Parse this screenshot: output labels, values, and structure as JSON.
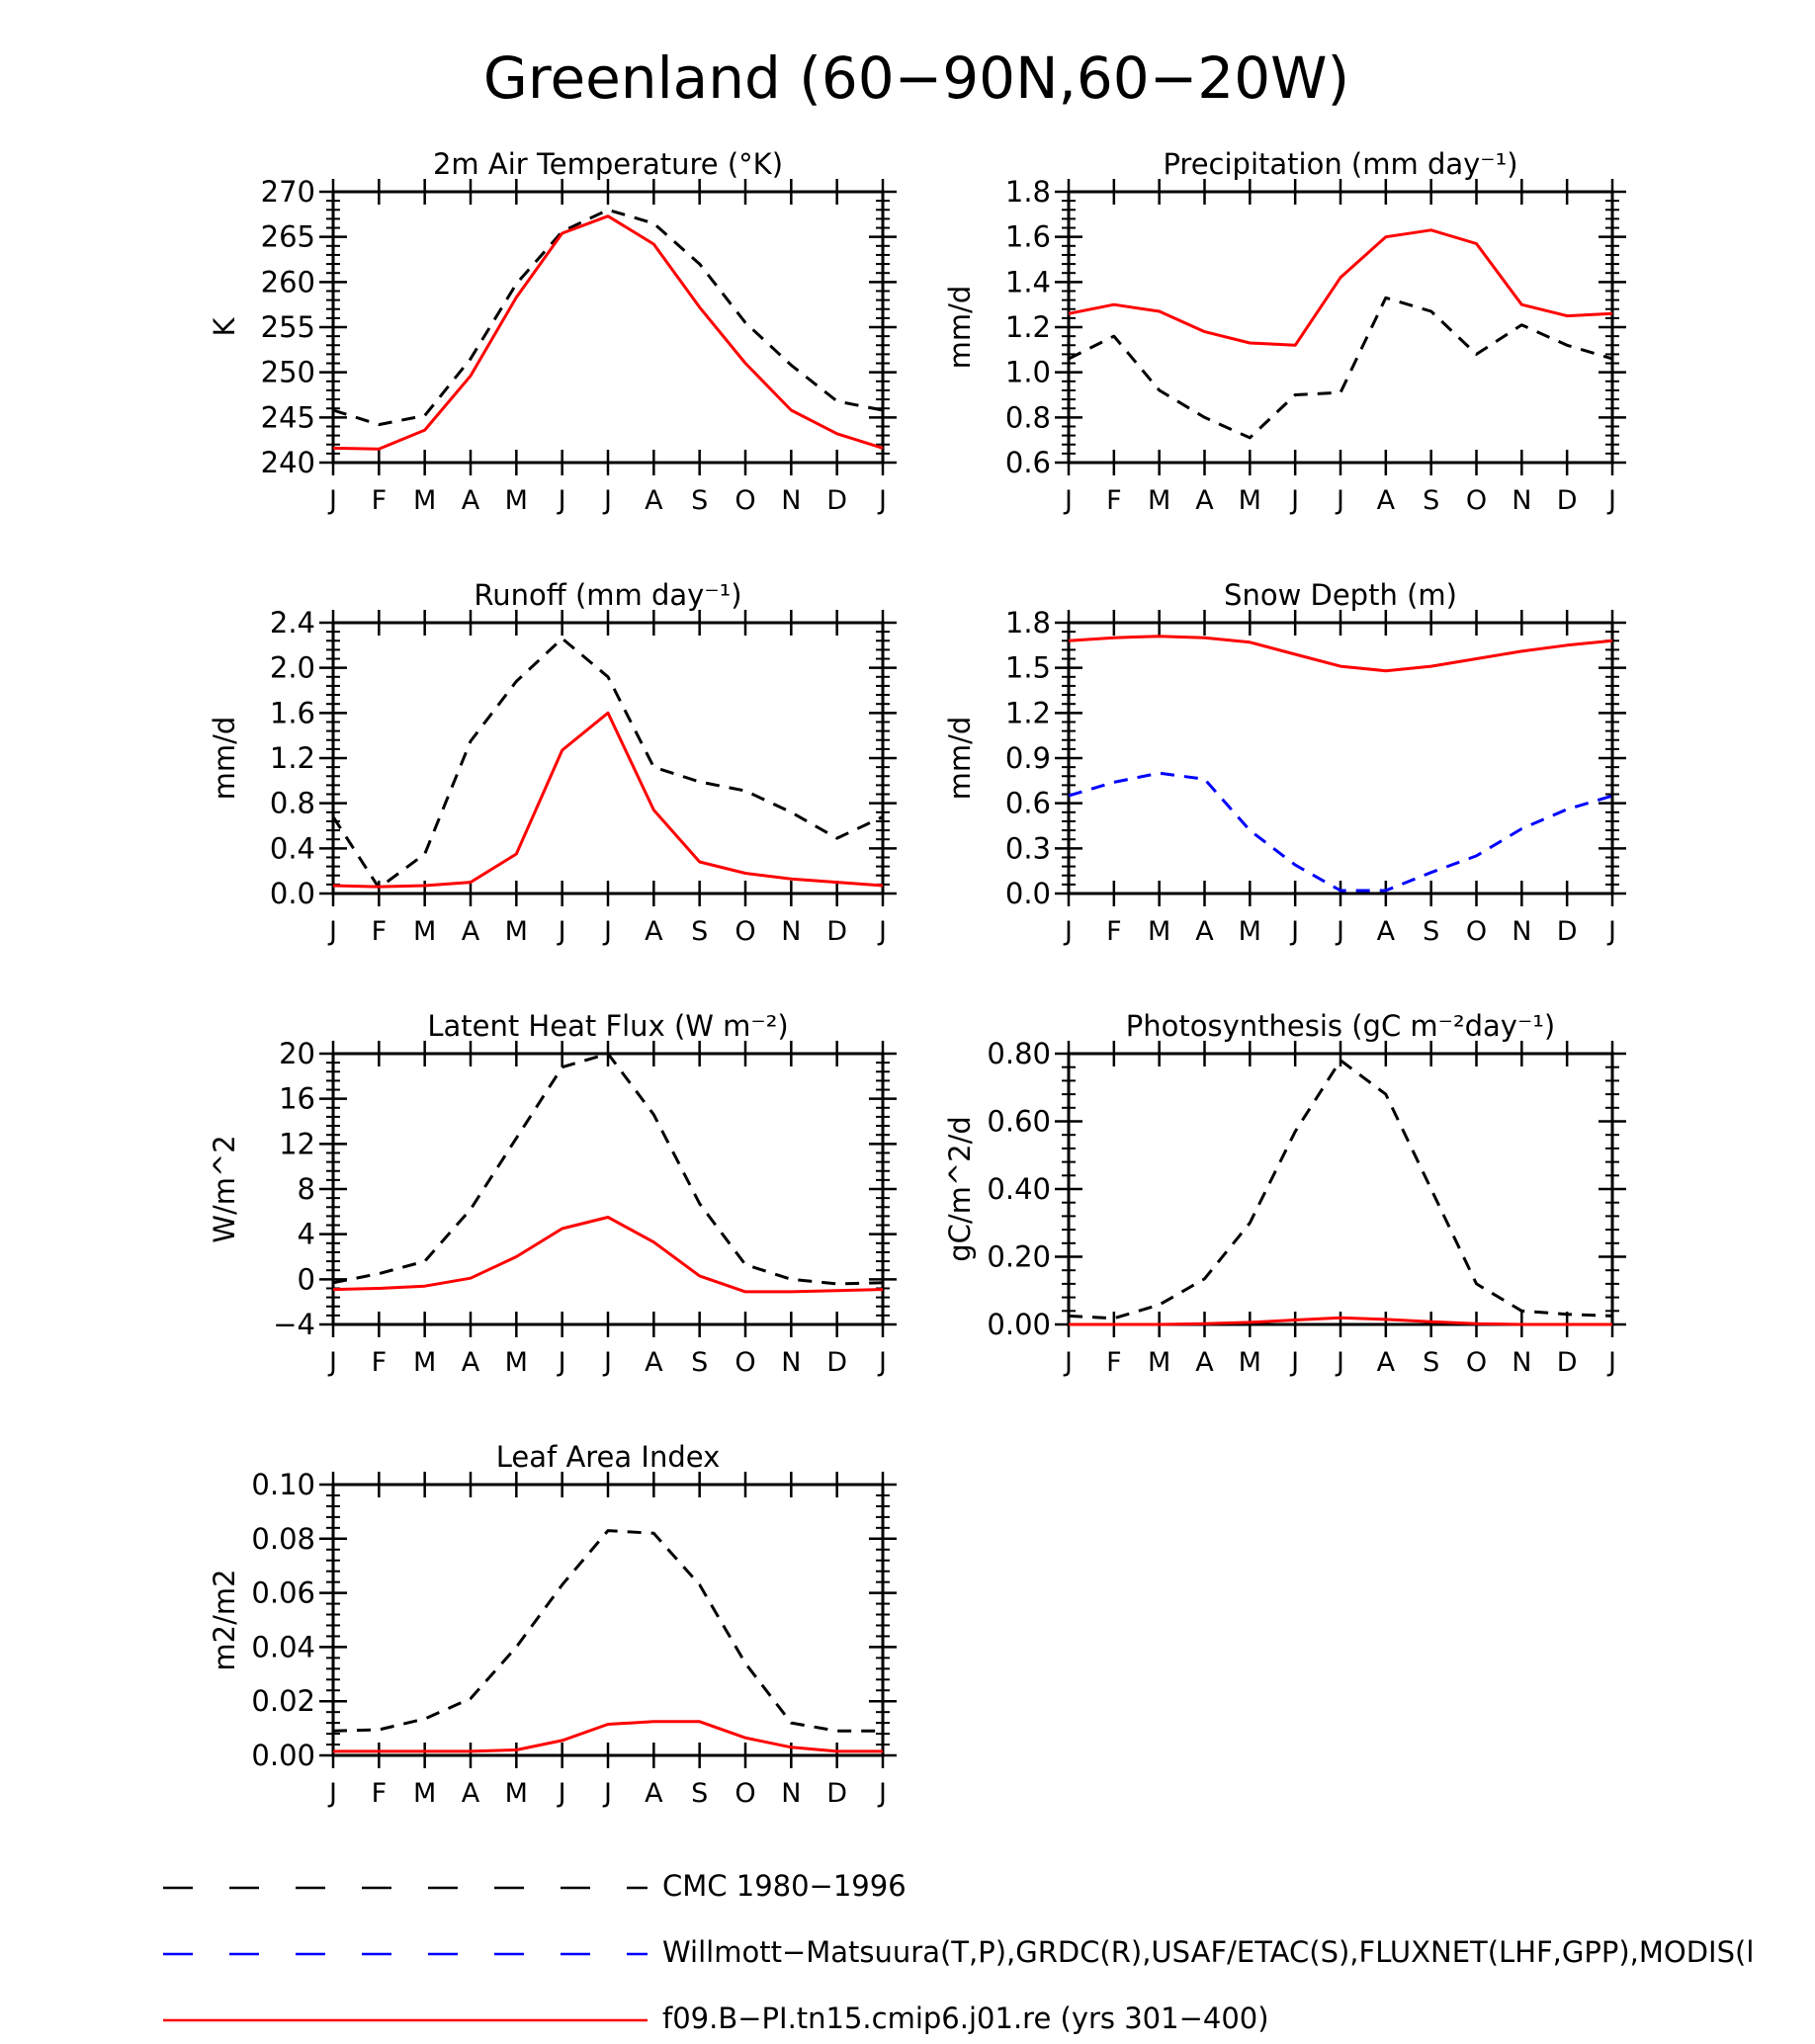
{
  "page_title": "Greenland (60−90N,60−20W)",
  "month_labels": [
    "J",
    "F",
    "M",
    "A",
    "M",
    "J",
    "J",
    "A",
    "S",
    "O",
    "N",
    "D",
    "J"
  ],
  "colors": {
    "cmc": "#000000",
    "obs": "#0000ff",
    "model": "#ff0000"
  },
  "legend": [
    {
      "label": "CMC 1980−1996",
      "color": "#000000",
      "style": "dashed"
    },
    {
      "label": "Willmott−Matsuura(T,P),GRDC(R),USAF/ETAC(S),FLUXNET(LHF,GPP),MODIS(l",
      "color": "#0000ff",
      "style": "dashed"
    },
    {
      "label": "f09.B−PI.tn15.cmip6.j01.re (yrs 301−400)",
      "color": "#ff0000",
      "style": "solid"
    }
  ],
  "chart_data": [
    {
      "type": "line",
      "title": "2m Air Temperature (°K)",
      "ylabel": "K",
      "ylim": [
        240,
        270
      ],
      "yticks": [
        "240",
        "245",
        "250",
        "255",
        "260",
        "265",
        "270"
      ],
      "series": [
        {
          "style": "dashed",
          "color": "#000000",
          "values": [
            245.8,
            244.2,
            245.2,
            251.5,
            259.8,
            265.6,
            268.0,
            266.5,
            262.0,
            255.5,
            250.8,
            246.8,
            245.8
          ]
        },
        {
          "style": "solid",
          "color": "#ff0000",
          "values": [
            241.6,
            241.5,
            243.6,
            249.6,
            258.3,
            265.4,
            267.3,
            264.2,
            257.2,
            251.0,
            245.8,
            243.2,
            241.6
          ]
        }
      ]
    },
    {
      "type": "line",
      "title": "Precipitation (mm day⁻¹)",
      "ylabel": "mm/d",
      "ylim": [
        0.6,
        1.8
      ],
      "yticks": [
        "0.6",
        "0.8",
        "1.0",
        "1.2",
        "1.4",
        "1.6",
        "1.8"
      ],
      "series": [
        {
          "style": "dashed",
          "color": "#000000",
          "values": [
            1.06,
            1.16,
            0.92,
            0.8,
            0.71,
            0.9,
            0.91,
            1.33,
            1.27,
            1.08,
            1.21,
            1.12,
            1.06
          ]
        },
        {
          "style": "solid",
          "color": "#ff0000",
          "values": [
            1.26,
            1.3,
            1.27,
            1.18,
            1.13,
            1.12,
            1.42,
            1.6,
            1.63,
            1.57,
            1.3,
            1.25,
            1.26
          ]
        }
      ]
    },
    {
      "type": "line",
      "title": "Runoff (mm day⁻¹)",
      "ylabel": "mm/d",
      "ylim": [
        0.0,
        2.4
      ],
      "yticks": [
        "0.0",
        "0.4",
        "0.8",
        "1.2",
        "1.6",
        "2.0",
        "2.4"
      ],
      "series": [
        {
          "style": "dashed",
          "color": "#000000",
          "values": [
            0.68,
            0.05,
            0.35,
            1.35,
            1.88,
            2.26,
            1.92,
            1.12,
            0.99,
            0.91,
            0.72,
            0.49,
            0.68
          ]
        },
        {
          "style": "solid",
          "color": "#ff0000",
          "values": [
            0.07,
            0.06,
            0.07,
            0.1,
            0.35,
            1.27,
            1.6,
            0.74,
            0.28,
            0.18,
            0.13,
            0.1,
            0.07
          ]
        }
      ]
    },
    {
      "type": "line",
      "title": "Snow Depth (m)",
      "ylabel": "mm/d",
      "ylim": [
        0.0,
        1.8
      ],
      "yticks": [
        "0.0",
        "0.3",
        "0.6",
        "0.9",
        "1.2",
        "1.5",
        "1.8"
      ],
      "series": [
        {
          "style": "dashed",
          "color": "#000000",
          "values": [
            0.0,
            0.0,
            0.0,
            0.0,
            0.0,
            0.0,
            0.0,
            0.0,
            0.0,
            0.0,
            0.0,
            0.0,
            0.0
          ]
        },
        {
          "style": "dashed",
          "color": "#0000ff",
          "values": [
            0.65,
            0.74,
            0.8,
            0.76,
            0.42,
            0.19,
            0.02,
            0.02,
            0.14,
            0.25,
            0.43,
            0.56,
            0.65
          ]
        },
        {
          "style": "solid",
          "color": "#ff0000",
          "values": [
            1.68,
            1.7,
            1.71,
            1.7,
            1.67,
            1.59,
            1.51,
            1.48,
            1.51,
            1.56,
            1.61,
            1.65,
            1.68
          ]
        }
      ]
    },
    {
      "type": "line",
      "title": "Latent Heat Flux (W m⁻²)",
      "ylabel": "W/m^2",
      "ylim": [
        -4,
        20
      ],
      "yticks": [
        "−4",
        "0",
        "4",
        "8",
        "12",
        "16",
        "20"
      ],
      "series": [
        {
          "style": "dashed",
          "color": "#000000",
          "values": [
            -0.3,
            0.5,
            1.6,
            6.2,
            12.5,
            18.8,
            20.0,
            14.6,
            6.7,
            1.3,
            0.0,
            -0.4,
            -0.3
          ]
        },
        {
          "style": "solid",
          "color": "#ff0000",
          "values": [
            -0.9,
            -0.8,
            -0.6,
            0.1,
            2.0,
            4.5,
            5.5,
            3.3,
            0.3,
            -1.1,
            -1.1,
            -1.0,
            -0.9
          ]
        }
      ]
    },
    {
      "type": "line",
      "title": "Photosynthesis (gC m⁻²day⁻¹)",
      "ylabel": "gC/m^2/d",
      "ylim": [
        0.0,
        0.8
      ],
      "yticks": [
        "0.00",
        "0.20",
        "0.40",
        "0.60",
        "0.80"
      ],
      "series": [
        {
          "style": "dashed",
          "color": "#000000",
          "values": [
            0.025,
            0.018,
            0.058,
            0.135,
            0.3,
            0.57,
            0.78,
            0.68,
            0.4,
            0.12,
            0.04,
            0.03,
            0.025
          ]
        },
        {
          "style": "solid",
          "color": "#ff0000",
          "values": [
            0.0,
            0.0,
            0.0,
            0.002,
            0.006,
            0.013,
            0.02,
            0.015,
            0.008,
            0.002,
            0.0,
            0.0,
            0.0
          ]
        }
      ]
    },
    {
      "type": "line",
      "title": "Leaf Area Index",
      "ylabel": "m2/m2",
      "ylim": [
        0.0,
        0.1
      ],
      "yticks": [
        "0.00",
        "0.02",
        "0.04",
        "0.06",
        "0.08",
        "0.10"
      ],
      "series": [
        {
          "style": "dashed",
          "color": "#000000",
          "values": [
            0.009,
            0.0095,
            0.0135,
            0.021,
            0.04,
            0.063,
            0.083,
            0.082,
            0.063,
            0.034,
            0.012,
            0.009,
            0.009
          ]
        },
        {
          "style": "solid",
          "color": "#ff0000",
          "values": [
            0.0015,
            0.0015,
            0.0015,
            0.0015,
            0.002,
            0.0055,
            0.0115,
            0.0125,
            0.0125,
            0.0065,
            0.003,
            0.0015,
            0.0015
          ]
        }
      ]
    }
  ]
}
